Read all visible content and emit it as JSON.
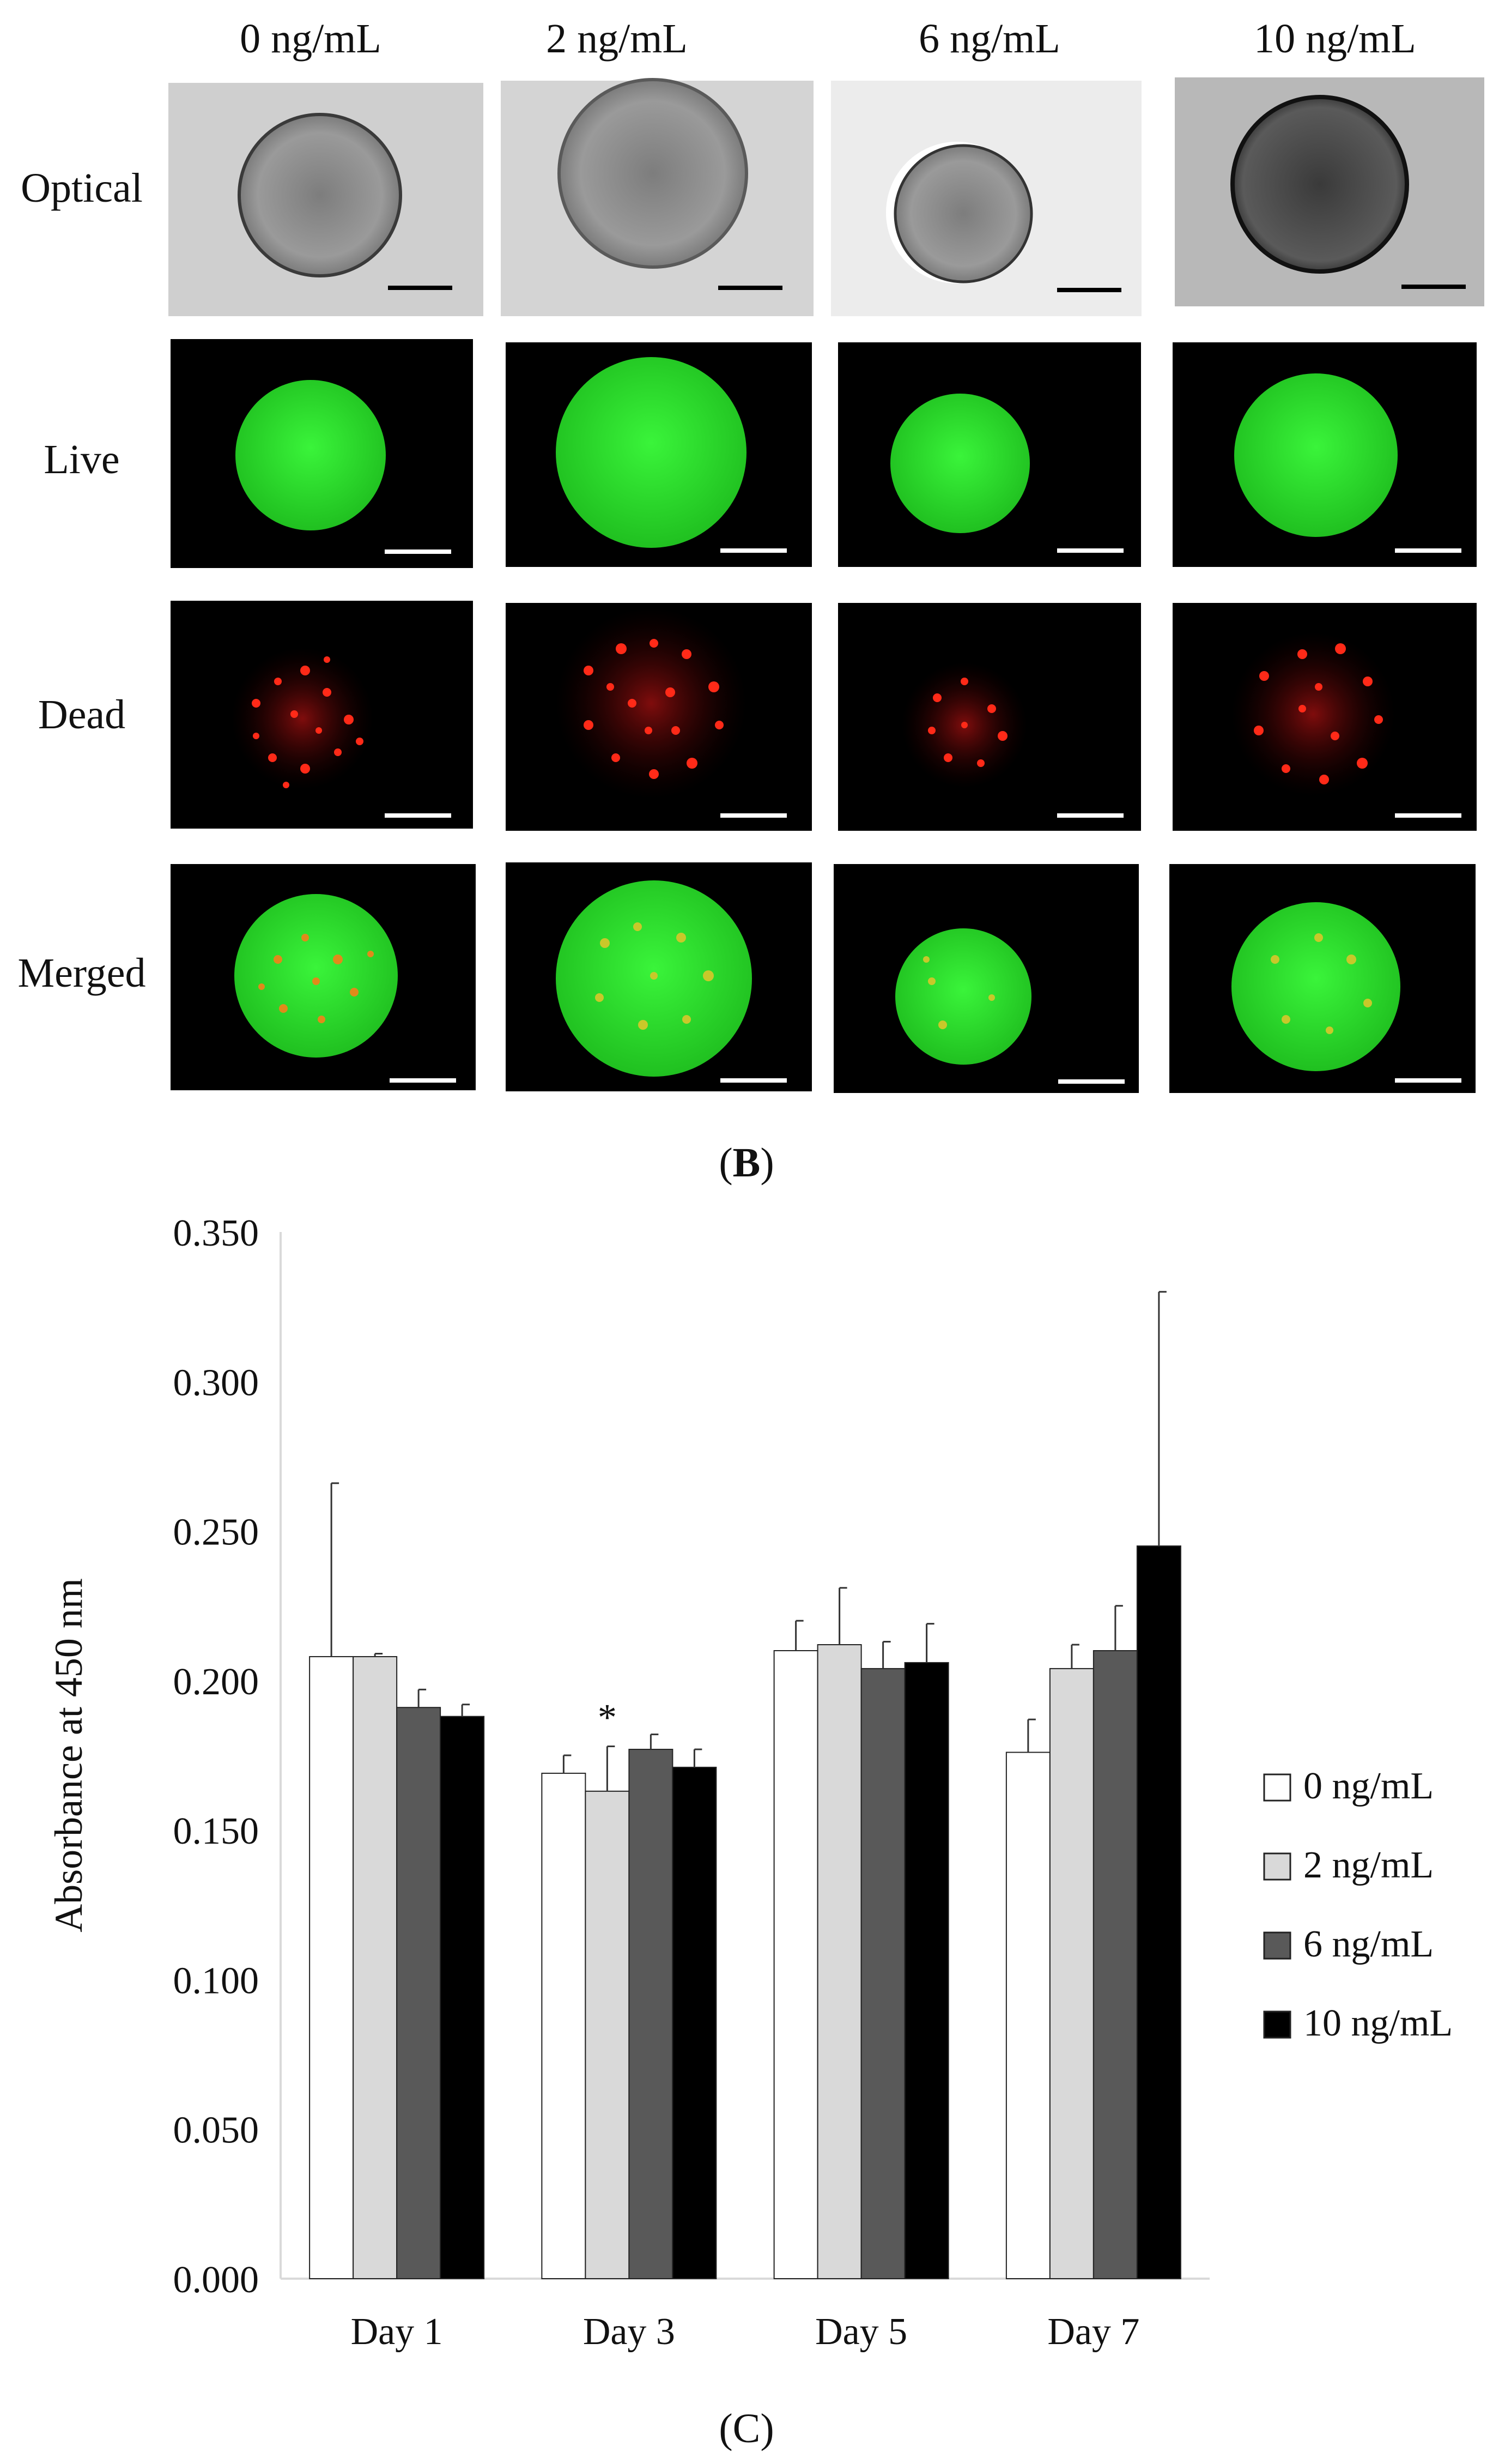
{
  "micrographs": {
    "columns": [
      "0 ng/mL",
      "2 ng/mL",
      "6 ng/mL",
      "10 ng/mL"
    ],
    "rows": [
      "Optical",
      "Live",
      "Dead",
      "Merged"
    ],
    "panel_label_left": "(",
    "panel_label_letter": "B",
    "panel_label_right": ")"
  },
  "colors": {
    "bar_series": [
      "#ffffff",
      "#d9d9d9",
      "#595959",
      "#000000"
    ],
    "live_green": "#22e41c",
    "dead_red": "#ff1a10"
  },
  "chart_data": {
    "type": "bar",
    "title": "",
    "xlabel": "",
    "ylabel": "Absorbance at 450 nm",
    "ylim": [
      0,
      0.35
    ],
    "yticks": [
      "0.000",
      "0.050",
      "0.100",
      "0.150",
      "0.200",
      "0.250",
      "0.300",
      "0.350"
    ],
    "categories": [
      "Day 1",
      "Day 3",
      "Day 5",
      "Day 7"
    ],
    "series": [
      {
        "name": "0 ng/mL",
        "values": [
          0.208,
          0.169,
          0.21,
          0.176
        ],
        "errors": [
          0.058,
          0.006,
          0.01,
          0.011
        ]
      },
      {
        "name": "2 ng/mL",
        "values": [
          0.208,
          0.163,
          0.212,
          0.204
        ],
        "errors": [
          0.001,
          0.015,
          0.019,
          0.008
        ]
      },
      {
        "name": "6 ng/mL",
        "values": [
          0.191,
          0.177,
          0.204,
          0.21
        ],
        "errors": [
          0.006,
          0.005,
          0.009,
          0.015
        ]
      },
      {
        "name": "10 ng/mL",
        "values": [
          0.188,
          0.171,
          0.206,
          0.245
        ],
        "errors": [
          0.004,
          0.006,
          0.013,
          0.085
        ]
      }
    ],
    "annotations": [
      {
        "text": "*",
        "category": "Day 3",
        "series": "2 ng/mL"
      }
    ],
    "legend": "right",
    "grid": false,
    "panel_label": "(C)"
  }
}
